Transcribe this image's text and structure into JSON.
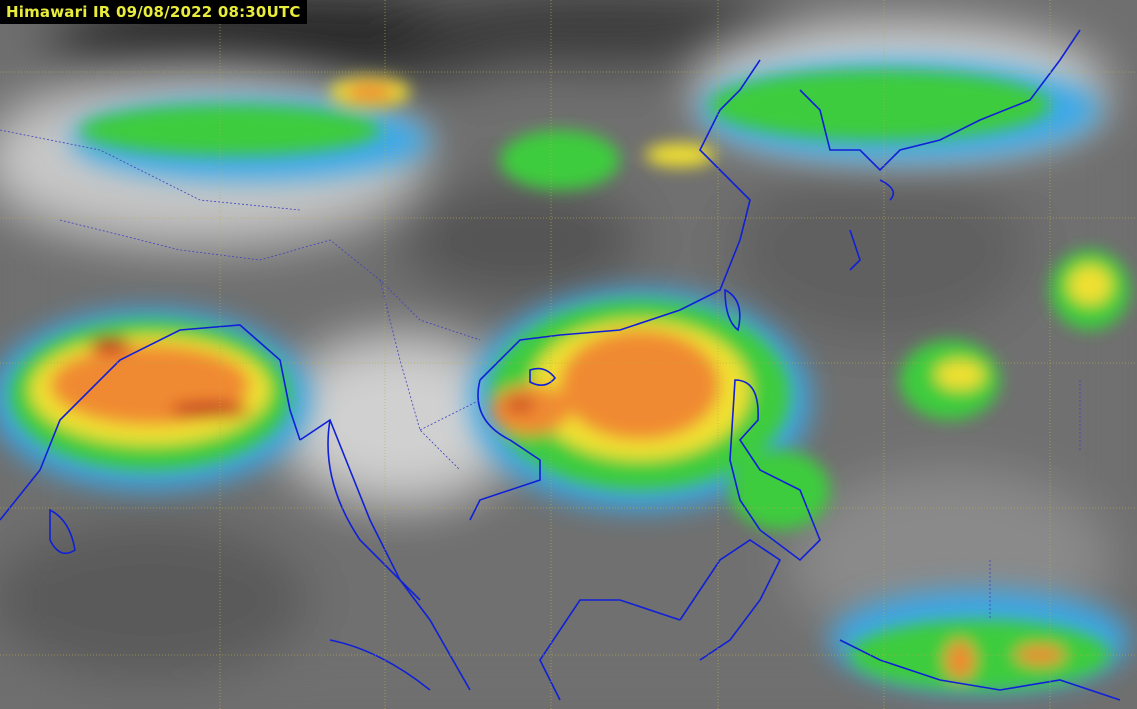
{
  "title": "Himawari IR 09/08/2022 08:30UTC",
  "colors": {
    "grid": "#b8b04a",
    "coastline": "#1020d8",
    "cloud_cold": "#f0f0f0",
    "cloud_cyan": "#3aa8e8",
    "cloud_green": "#3ccc3c",
    "cloud_yellow": "#f0e030",
    "cloud_orange": "#f08a30",
    "cloud_red": "#c03020",
    "background_ir": "#6e6e6e"
  },
  "satellite": "Himawari",
  "channel": "IR"
}
